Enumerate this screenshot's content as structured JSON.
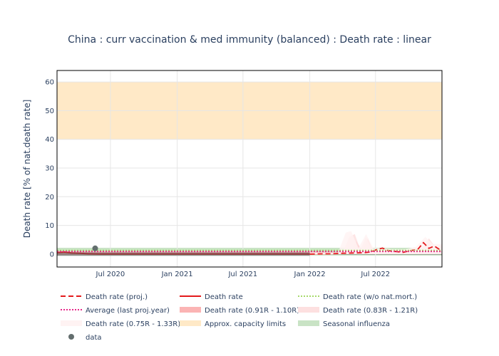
{
  "chart_data": {
    "type": "line",
    "title": "China : curr vaccination & med immunity (balanced) : Death rate : linear",
    "xlabel": "",
    "ylabel": "Death rate [% of nat.death rate]",
    "x_range": [
      "2020-02-05",
      "2022-12-31"
    ],
    "ylim": [
      -4.5,
      64
    ],
    "x_ticks": [
      {
        "date": "2020-07-01",
        "label": "Jul 2020"
      },
      {
        "date": "2021-01-01",
        "label": "Jan 2021"
      },
      {
        "date": "2021-07-01",
        "label": "Jul 2021"
      },
      {
        "date": "2022-01-01",
        "label": "Jan 2022"
      },
      {
        "date": "2022-07-01",
        "label": "Jul 2022"
      }
    ],
    "y_ticks": [
      0,
      10,
      20,
      30,
      40,
      50,
      60
    ],
    "grid": true,
    "legend_position": "bottom",
    "bands": [
      {
        "name": "Approx. capacity limits",
        "y0": 40,
        "y1": 60,
        "color": "#ffe9c7"
      },
      {
        "name": "Seasonal influenza",
        "y0": -0.5,
        "y1": 2.2,
        "color": "#c9e3c5"
      }
    ],
    "series": [
      {
        "name": "Death rate (proj.)",
        "style": "dash",
        "color": "#e31a1c",
        "x": [
          "2022-01-01",
          "2022-02-01",
          "2022-03-01",
          "2022-04-01",
          "2022-05-01",
          "2022-06-01",
          "2022-06-20",
          "2022-07-05",
          "2022-07-20",
          "2022-08-05",
          "2022-08-25",
          "2022-09-15",
          "2022-10-05",
          "2022-10-25",
          "2022-11-10",
          "2022-11-25",
          "2022-12-10",
          "2022-12-31"
        ],
        "y": [
          0,
          0.1,
          0.1,
          0.3,
          0.4,
          0.5,
          0.8,
          1.6,
          2.1,
          1.2,
          0.9,
          0.6,
          1.2,
          1.6,
          4.0,
          2.0,
          2.8,
          1.0
        ]
      },
      {
        "name": "Death rate",
        "style": "solid",
        "color": "#e31a1c",
        "x": [
          "2020-02-05",
          "2020-02-25",
          "2020-03-15",
          "2020-04-10",
          "2020-05-01",
          "2020-06-01",
          "2021-01-01",
          "2021-07-01",
          "2022-01-01"
        ],
        "y": [
          0.5,
          0.7,
          0.4,
          0.3,
          0.1,
          0.05,
          0.05,
          0.05,
          0.05
        ]
      },
      {
        "name": "Death rate (w/o nat.mort.)",
        "style": "dot",
        "color": "#a6d96a",
        "x": [
          "2020-02-05",
          "2022-12-31"
        ],
        "y": [
          1.3,
          1.3
        ]
      },
      {
        "name": "Average (last proj.year)",
        "style": "dot",
        "color": "#e7298a",
        "x": [
          "2020-02-05",
          "2022-12-31"
        ],
        "y": [
          0.9,
          0.9
        ]
      },
      {
        "name": "Death rate (0.91R - 1.10R)",
        "style": "fill",
        "color": "#fbb4b4",
        "x": [
          "2020-02-05",
          "2022-01-01",
          "2022-04-20",
          "2022-05-10",
          "2022-05-25",
          "2022-06-10",
          "2022-06-25",
          "2022-07-15",
          "2022-08-15",
          "2022-09-15",
          "2022-10-15",
          "2022-11-10",
          "2022-11-25",
          "2022-12-10",
          "2022-12-31"
        ],
        "lower": [
          -0.3,
          -0.3,
          0,
          0,
          0,
          0,
          0,
          0,
          0,
          0,
          0,
          0,
          0,
          0,
          0
        ],
        "upper": [
          0.9,
          0.9,
          0.5,
          4.5,
          1.0,
          5.5,
          1.0,
          1.2,
          1.0,
          1.0,
          1.5,
          1.5,
          5.0,
          1.5,
          2.5
        ]
      },
      {
        "name": "Death rate (0.83R - 1.21R)",
        "style": "fill",
        "color": "#fde0e0",
        "x": [
          "2022-01-01",
          "2022-04-01",
          "2022-04-20",
          "2022-05-05",
          "2022-05-20",
          "2022-06-05",
          "2022-06-20",
          "2022-07-15",
          "2022-08-15",
          "2022-09-15",
          "2022-10-15",
          "2022-11-10",
          "2022-11-25",
          "2022-12-10",
          "2022-12-31"
        ],
        "lower": [
          0,
          0,
          0,
          0,
          0,
          0,
          0,
          0,
          0,
          0,
          0,
          0,
          0,
          0,
          0
        ],
        "upper": [
          0.5,
          0.5,
          6.0,
          7.0,
          1.5,
          6.0,
          1.5,
          1.5,
          1.3,
          1.3,
          2.0,
          2.5,
          5.5,
          3.0,
          3.0
        ]
      },
      {
        "name": "Death rate (0.75R - 1.33R)",
        "style": "fill",
        "color": "#fff3f3",
        "x": [
          "2022-01-01",
          "2022-03-20",
          "2022-04-10",
          "2022-04-25",
          "2022-05-15",
          "2022-06-05",
          "2022-06-25",
          "2022-07-20",
          "2022-08-20",
          "2022-09-20",
          "2022-10-20",
          "2022-11-15",
          "2022-12-05",
          "2022-12-31"
        ],
        "lower": [
          0,
          0,
          0,
          0,
          0,
          0,
          0,
          0,
          0,
          0,
          0,
          0,
          0,
          0
        ],
        "upper": [
          0.5,
          0.5,
          7.5,
          8.0,
          2.0,
          7.0,
          2.0,
          2.0,
          1.6,
          1.6,
          2.5,
          6.0,
          3.5,
          3.5
        ]
      },
      {
        "name": "data",
        "style": "marker",
        "color": "#636e6e",
        "x": [
          "2020-05-20"
        ],
        "y": [
          2.0
        ]
      }
    ],
    "legend": [
      {
        "label": "Death rate (proj.)",
        "kind": "dash",
        "color": "#e31a1c"
      },
      {
        "label": "Death rate",
        "kind": "solid",
        "color": "#e31a1c"
      },
      {
        "label": "Death rate (w/o nat.mort.)",
        "kind": "dot",
        "color": "#a6d96a"
      },
      {
        "label": "Average (last proj.year)",
        "kind": "dot",
        "color": "#e7298a"
      },
      {
        "label": "Death rate (0.91R - 1.10R)",
        "kind": "fill",
        "color": "#fbb4b4"
      },
      {
        "label": "Death rate (0.83R - 1.21R)",
        "kind": "fill",
        "color": "#fde0e0"
      },
      {
        "label": "Death rate (0.75R - 1.33R)",
        "kind": "fill",
        "color": "#fff3f3"
      },
      {
        "label": "Approx. capacity limits",
        "kind": "fill",
        "color": "#ffe9c7"
      },
      {
        "label": "Seasonal influenza",
        "kind": "fill",
        "color": "#c9e3c5"
      },
      {
        "label": "data",
        "kind": "marker",
        "color": "#636e6e"
      }
    ]
  }
}
